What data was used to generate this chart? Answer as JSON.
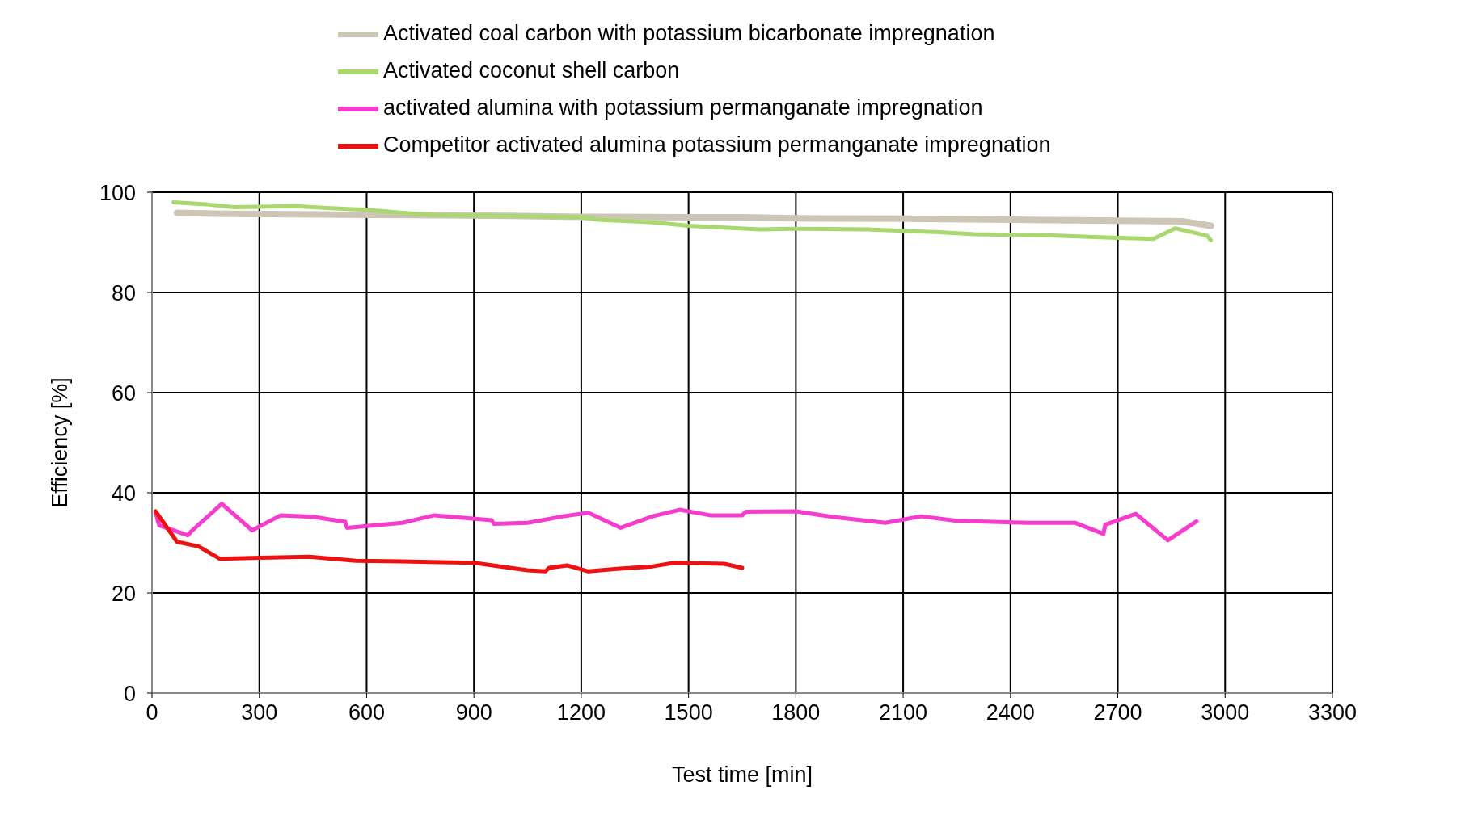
{
  "chart_data": {
    "type": "line",
    "xlabel": "Test time [min]",
    "ylabel": "Efficiency [%]",
    "xlim": [
      0,
      3300
    ],
    "xticks": [
      0,
      300,
      600,
      900,
      1200,
      1500,
      1800,
      2100,
      2400,
      2700,
      3000,
      3300
    ],
    "ylim": [
      0,
      100
    ],
    "yticks": [
      0,
      20,
      40,
      60,
      80,
      100
    ],
    "grid": true,
    "legend": "top",
    "marker": "none",
    "line_style": "solid",
    "series": [
      {
        "name": "Activated coal carbon with potassium bicarbonate impregnation",
        "color": "#cdc6b7",
        "x": [
          70,
          200,
          400,
          600,
          800,
          1000,
          1200,
          1500,
          1650,
          1800,
          2100,
          2400,
          2700,
          2880,
          2960
        ],
        "values": [
          95.9,
          95.7,
          95.6,
          95.5,
          95.4,
          95.3,
          95.1,
          95,
          95,
          94.8,
          94.7,
          94.5,
          94.3,
          94.2,
          93.3
        ]
      },
      {
        "name": "Activated coconut shell carbon",
        "color": "#a9d86e",
        "x": [
          60,
          150,
          230,
          400,
          500,
          600,
          700,
          800,
          1000,
          1200,
          1250,
          1400,
          1500,
          1700,
          1800,
          2000,
          2200,
          2300,
          2500,
          2650,
          2800,
          2860,
          2950,
          2960
        ],
        "values": [
          98,
          97.6,
          97,
          97.2,
          96.8,
          96.5,
          95.9,
          95.4,
          95.3,
          95,
          94.5,
          94,
          93.3,
          92.6,
          92.7,
          92.6,
          92,
          91.6,
          91.4,
          91,
          90.7,
          92.8,
          91.3,
          90.4
        ]
      },
      {
        "name": "activated alumina with potassium permanganate impregnation",
        "color": "#f53ccc",
        "x": [
          10,
          20,
          100,
          110,
          195,
          280,
          360,
          450,
          540,
          545,
          700,
          790,
          950,
          955,
          1050,
          1150,
          1220,
          1310,
          1400,
          1475,
          1560,
          1650,
          1660,
          1800,
          1900,
          2050,
          2150,
          2250,
          2450,
          2580,
          2660,
          2665,
          2750,
          2840,
          2920
        ],
        "values": [
          36,
          33.5,
          31.5,
          32.3,
          37.8,
          32.5,
          35.5,
          35.2,
          34.2,
          33,
          34,
          35.5,
          34.5,
          33.8,
          34,
          35.3,
          36,
          33,
          35.3,
          36.6,
          35.5,
          35.5,
          36.2,
          36.3,
          35.2,
          34,
          35.3,
          34.4,
          34,
          34,
          31.8,
          33.6,
          35.8,
          30.5,
          34.3
        ]
      },
      {
        "name": "Competitor activated alumina potassium permanganate impregnation",
        "color": "#ee1111",
        "x": [
          10,
          70,
          130,
          190,
          300,
          440,
          570,
          700,
          900,
          1050,
          1100,
          1110,
          1160,
          1220,
          1300,
          1400,
          1460,
          1600,
          1650
        ],
        "values": [
          36.3,
          30.2,
          29.3,
          26.8,
          27,
          27.2,
          26.4,
          26.3,
          26,
          24.5,
          24.3,
          25,
          25.5,
          24.3,
          24.8,
          25.3,
          26,
          25.8,
          25
        ]
      }
    ]
  }
}
